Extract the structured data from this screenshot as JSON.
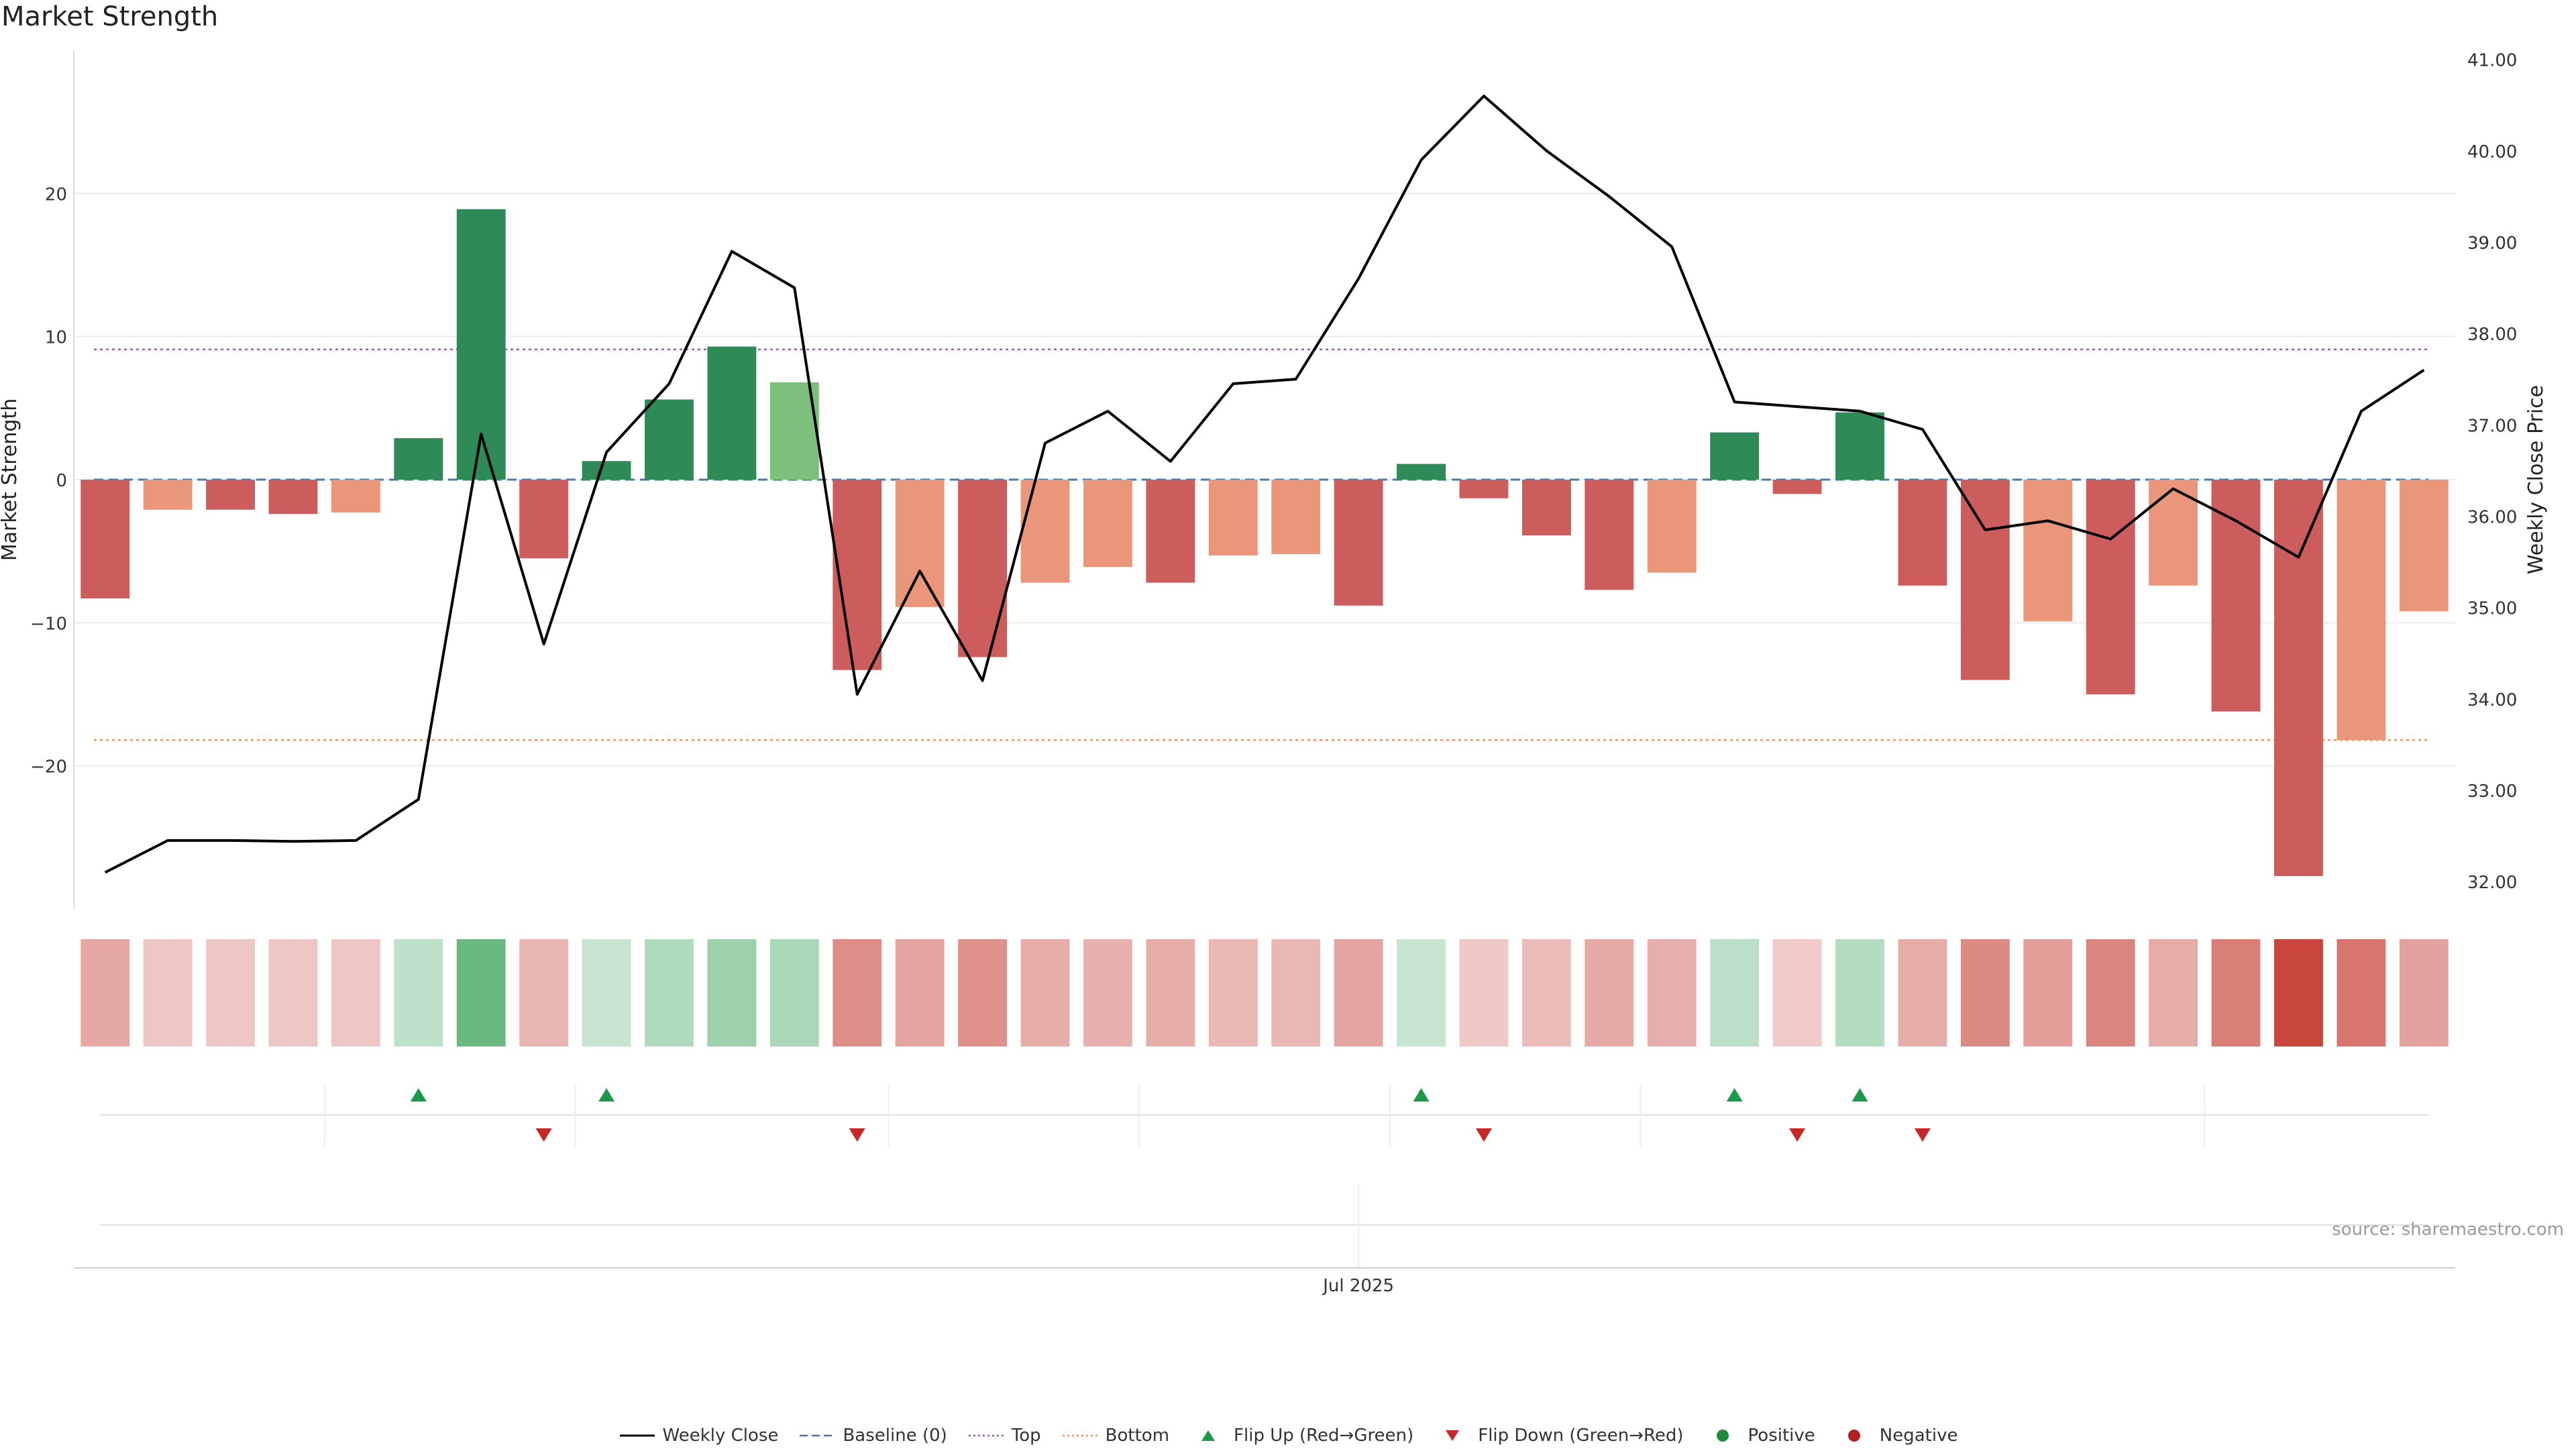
{
  "chart_data": {
    "type": "bar",
    "title": "Market Strength",
    "ylabel": "Market Strength",
    "y2label": "Weekly Close Price",
    "ylim": [
      -30,
      30
    ],
    "y2lim": [
      31.7,
      41.1
    ],
    "yticks": [
      "20",
      "10",
      "0",
      "−10",
      "−20"
    ],
    "y2ticks": [
      "41.00",
      "40.00",
      "39.00",
      "38.00",
      "37.00",
      "36.00",
      "35.00",
      "34.00",
      "33.00",
      "32.00"
    ],
    "xtick_label": "Jul 2025",
    "top_level": 9.1,
    "bottom_level": -18.2,
    "series": [
      {
        "name": "Market Strength",
        "values": [
          -8.3,
          -2.1,
          -2.1,
          -2.4,
          -2.3,
          2.9,
          18.9,
          -5.5,
          1.3,
          5.6,
          9.3,
          6.8,
          -13.3,
          -8.9,
          -12.4,
          -7.2,
          -6.1,
          -7.2,
          -5.3,
          -5.2,
          -8.8,
          1.1,
          -1.3,
          -3.9,
          -7.7,
          -6.5,
          3.3,
          -1.0,
          4.7,
          -7.4,
          -14.0,
          -9.9,
          -15.0,
          -7.4,
          -16.2,
          -27.7,
          -18.2,
          -9.2
        ]
      },
      {
        "name": "Weekly Close",
        "values": [
          32.1,
          32.45,
          32.45,
          32.44,
          32.45,
          32.9,
          36.9,
          34.6,
          36.7,
          37.45,
          38.9,
          38.5,
          34.05,
          35.4,
          34.2,
          36.8,
          37.15,
          36.6,
          37.45,
          37.5,
          38.6,
          39.9,
          40.6,
          40.0,
          39.5,
          38.95,
          37.25,
          37.2,
          37.15,
          36.95,
          35.85,
          35.95,
          35.75,
          36.3,
          35.95,
          35.55,
          37.15,
          37.6
        ]
      }
    ],
    "flip_up": [
      5,
      8,
      21,
      26,
      28
    ],
    "flip_down": [
      7,
      12,
      22,
      27,
      29
    ],
    "legend": {
      "placement": "bottom",
      "items": [
        {
          "label": "Weekly Close",
          "kind": "line",
          "color": "#000000"
        },
        {
          "label": "Baseline (0)",
          "kind": "dashed",
          "color": "#4a78a8"
        },
        {
          "label": "Top",
          "kind": "dotted",
          "color": "#9b59b6"
        },
        {
          "label": "Bottom",
          "kind": "dotted",
          "color": "#f0925e"
        },
        {
          "label": "Flip Up (Red→Green)",
          "kind": "triangle-up",
          "color": "#1a9a4a"
        },
        {
          "label": "Flip Down (Green→Red)",
          "kind": "triangle-down",
          "color": "#c62828"
        },
        {
          "label": "Positive",
          "kind": "dot",
          "color": "#1f8a3a"
        },
        {
          "label": "Negative",
          "kind": "dot",
          "color": "#b22222"
        }
      ]
    },
    "grid": true,
    "colors": {
      "strong_positive": "#2e8b57",
      "light_positive": "#7dbf7d",
      "strong_negative": "#cd5c5c",
      "light_negative": "#e9967a"
    }
  },
  "source_text": "source: sharemaestro.com"
}
